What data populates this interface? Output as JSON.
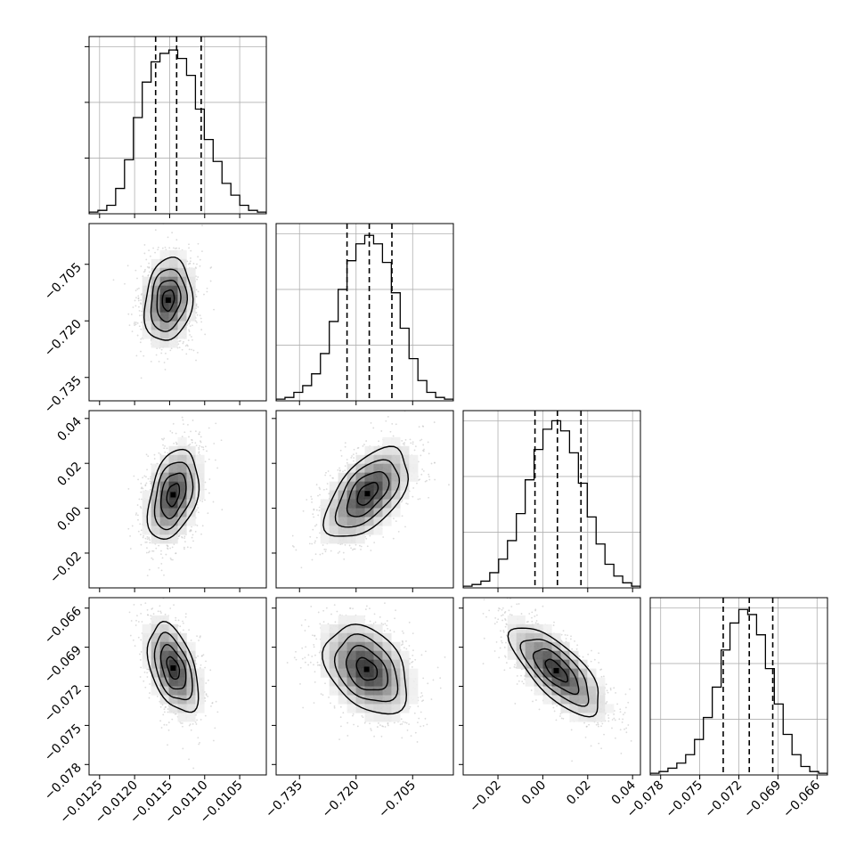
{
  "chart_data": {
    "type": "corner",
    "parameters": [
      {
        "range": [
          -0.01265,
          -0.01012
        ],
        "ticks": [
          -0.0125,
          -0.012,
          -0.0115,
          -0.011,
          -0.0105
        ],
        "tick_labels": [
          "−0.0125",
          "−0.0120",
          "−0.0115",
          "−0.0110",
          "−0.0105"
        ],
        "quantiles": [
          -0.0117,
          -0.0114,
          -0.01105
        ],
        "hist": [
          0.01,
          0.02,
          0.05,
          0.15,
          0.32,
          0.57,
          0.78,
          0.9,
          0.95,
          0.97,
          0.92,
          0.82,
          0.62,
          0.44,
          0.31,
          0.18,
          0.11,
          0.05,
          0.02,
          0.01
        ]
      },
      {
        "range": [
          -0.7412,
          -0.6942
        ],
        "ticks": [
          -0.735,
          -0.72,
          -0.705
        ],
        "tick_labels": [
          "−0.735",
          "−0.720",
          "−0.705"
        ],
        "quantiles": [
          -0.7224,
          -0.7165,
          -0.7105
        ],
        "hist": [
          0.01,
          0.02,
          0.05,
          0.09,
          0.16,
          0.28,
          0.47,
          0.66,
          0.83,
          0.93,
          0.98,
          0.93,
          0.82,
          0.64,
          0.43,
          0.25,
          0.12,
          0.05,
          0.02,
          0.01
        ]
      },
      {
        "range": [
          -0.0355,
          0.0435
        ],
        "ticks": [
          -0.02,
          0.0,
          0.02,
          0.04
        ],
        "tick_labels": [
          "−0.02",
          "0.00",
          "0.02",
          "0.04"
        ],
        "quantiles": [
          -0.0035,
          0.0065,
          0.017
        ],
        "hist": [
          0.01,
          0.02,
          0.04,
          0.09,
          0.17,
          0.28,
          0.44,
          0.64,
          0.82,
          0.94,
          0.99,
          0.93,
          0.8,
          0.62,
          0.42,
          0.26,
          0.14,
          0.07,
          0.03,
          0.01
        ]
      },
      {
        "range": [
          -0.0788,
          -0.0652
        ],
        "ticks": [
          -0.078,
          -0.075,
          -0.072,
          -0.069,
          -0.066
        ],
        "tick_labels": [
          "−0.078",
          "−0.075",
          "−0.072",
          "−0.069",
          "−0.066"
        ],
        "quantiles": [
          -0.0732,
          -0.0712,
          -0.0694
        ],
        "hist": [
          0.01,
          0.02,
          0.04,
          0.07,
          0.12,
          0.21,
          0.34,
          0.52,
          0.74,
          0.9,
          0.98,
          0.95,
          0.83,
          0.63,
          0.42,
          0.24,
          0.12,
          0.05,
          0.02,
          0.01
        ]
      }
    ],
    "pairs": [
      {
        "x": 0,
        "y": 1,
        "cx": -0.01152,
        "cy": -0.7145,
        "sx": 0.00017,
        "sy": 0.0055,
        "rho": 0.15
      },
      {
        "x": 0,
        "y": 2,
        "cx": -0.01145,
        "cy": 0.006,
        "sx": 0.00018,
        "sy": 0.01,
        "rho": 0.35
      },
      {
        "x": 1,
        "y": 2,
        "cx": -0.717,
        "cy": 0.0065,
        "sx": 0.0055,
        "sy": 0.01,
        "rho": 0.55
      },
      {
        "x": 0,
        "y": 3,
        "cx": -0.01145,
        "cy": -0.0706,
        "sx": 0.00018,
        "sy": 0.0017,
        "rho": -0.45
      },
      {
        "x": 1,
        "y": 3,
        "cx": -0.7172,
        "cy": -0.0707,
        "sx": 0.0055,
        "sy": 0.0017,
        "rho": -0.35
      },
      {
        "x": 2,
        "y": 3,
        "cx": 0.006,
        "cy": -0.0708,
        "sx": 0.01,
        "sy": 0.0017,
        "rho": -0.72
      }
    ],
    "grid": true
  }
}
